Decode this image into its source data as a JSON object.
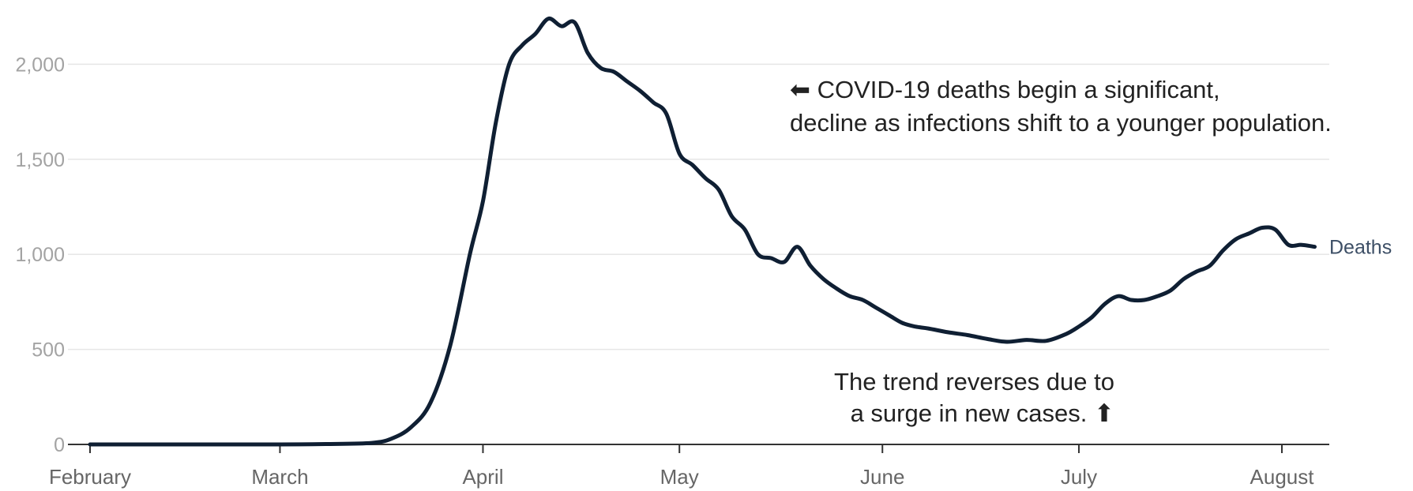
{
  "chart_data": {
    "type": "line",
    "title": "",
    "xlabel": "",
    "ylabel": "",
    "ylim": [
      0,
      2300
    ],
    "y_ticks": [
      0,
      500,
      1000,
      1500,
      2000
    ],
    "y_tick_labels": [
      "0",
      "500",
      "1,000",
      "1,500",
      "2,000"
    ],
    "x_month_labels": [
      "February",
      "March",
      "April",
      "May",
      "June",
      "July",
      "August"
    ],
    "grid": "horizontal",
    "colors": {
      "line": "#0f1f33",
      "grid": "#e6e6e6",
      "axis": "#333333",
      "series_label": "#3d4f66"
    },
    "annotations": {
      "decline_line1": "⬅ COVID-19 deaths begin a significant,",
      "decline_line2": "decline as infections shift to a younger population.",
      "reverse_line1": "The trend reverses due to",
      "reverse_line2": "a surge in new cases. ⬆"
    },
    "series": [
      {
        "name": "Deaths",
        "x": [
          "2020-02-01",
          "2020-02-15",
          "2020-03-01",
          "2020-03-08",
          "2020-03-15",
          "2020-03-18",
          "2020-03-21",
          "2020-03-24",
          "2020-03-27",
          "2020-03-30",
          "2020-04-01",
          "2020-04-03",
          "2020-04-05",
          "2020-04-07",
          "2020-04-09",
          "2020-04-11",
          "2020-04-13",
          "2020-04-15",
          "2020-04-17",
          "2020-04-19",
          "2020-04-21",
          "2020-04-23",
          "2020-04-25",
          "2020-04-27",
          "2020-04-29",
          "2020-05-01",
          "2020-05-03",
          "2020-05-05",
          "2020-05-07",
          "2020-05-09",
          "2020-05-11",
          "2020-05-13",
          "2020-05-15",
          "2020-05-17",
          "2020-05-19",
          "2020-05-21",
          "2020-05-23",
          "2020-05-25",
          "2020-05-27",
          "2020-05-29",
          "2020-05-31",
          "2020-06-02",
          "2020-06-04",
          "2020-06-06",
          "2020-06-08",
          "2020-06-11",
          "2020-06-14",
          "2020-06-17",
          "2020-06-20",
          "2020-06-23",
          "2020-06-26",
          "2020-06-29",
          "2020-07-01",
          "2020-07-03",
          "2020-07-05",
          "2020-07-07",
          "2020-07-09",
          "2020-07-11",
          "2020-07-13",
          "2020-07-15",
          "2020-07-17",
          "2020-07-19",
          "2020-07-21",
          "2020-07-23",
          "2020-07-25",
          "2020-07-27",
          "2020-07-29",
          "2020-07-31",
          "2020-08-02",
          "2020-08-04",
          "2020-08-06"
        ],
        "values": [
          0,
          0,
          0,
          2,
          8,
          30,
          90,
          220,
          520,
          1000,
          1280,
          1700,
          2000,
          2100,
          2160,
          2240,
          2200,
          2220,
          2060,
          1980,
          1960,
          1910,
          1860,
          1800,
          1740,
          1530,
          1470,
          1400,
          1340,
          1200,
          1130,
          1000,
          980,
          960,
          1040,
          940,
          870,
          820,
          780,
          760,
          720,
          680,
          640,
          620,
          610,
          590,
          575,
          555,
          540,
          550,
          545,
          580,
          620,
          670,
          740,
          780,
          760,
          760,
          780,
          810,
          870,
          910,
          940,
          1020,
          1080,
          1110,
          1140,
          1130,
          1050,
          1050,
          1040
        ]
      }
    ]
  }
}
